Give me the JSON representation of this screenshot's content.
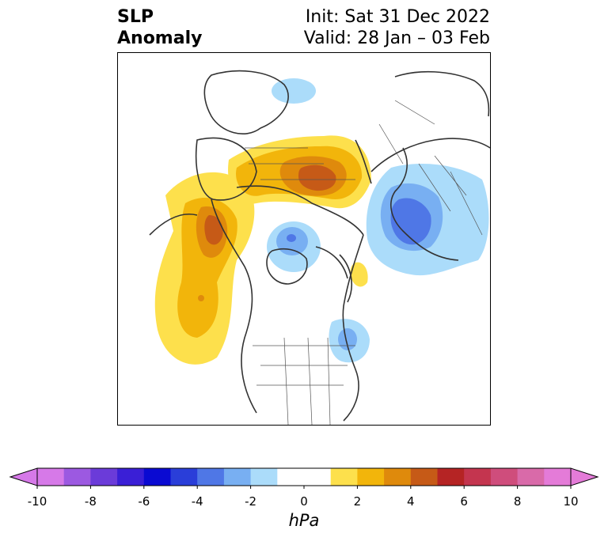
{
  "title": {
    "line1": "SLP",
    "line2": "Anomaly",
    "init": "Init: Sat 31 Dec 2022",
    "valid": "Valid: 28 Jan – 03 Feb"
  },
  "colorbar": {
    "unit": "hPa",
    "ticks": [
      "-10",
      "-8",
      "-6",
      "-4",
      "-2",
      "0",
      "2",
      "4",
      "6",
      "8",
      "10"
    ],
    "colors": [
      "#d679e8",
      "#9c59e1",
      "#6b3bd9",
      "#3a1fd6",
      "#0a0ad2",
      "#2a3ed9",
      "#4f77e6",
      "#78aff2",
      "#abdcfa",
      "#ffffff",
      "#ffffff",
      "#fde04c",
      "#f2b50b",
      "#df8a0c",
      "#c65a17",
      "#b52424",
      "#c4354f",
      "#cf4d7c",
      "#d96aa9",
      "#e47bd8"
    ],
    "min_color": "#d679e8",
    "max_color": "#e47bd8"
  },
  "map": {
    "anomalies": [
      {
        "name": "pacific-positive",
        "sign": "positive",
        "peak_hpa": 5
      },
      {
        "name": "siberia-arctic-positive",
        "sign": "positive",
        "peak_hpa": 5
      },
      {
        "name": "europe-negative",
        "sign": "negative",
        "peak_hpa": -5
      },
      {
        "name": "canada-negative",
        "sign": "negative",
        "peak_hpa": -4
      },
      {
        "name": "atlantic-negative",
        "sign": "negative",
        "peak_hpa": -3
      },
      {
        "name": "asia-negative",
        "sign": "negative",
        "peak_hpa": -2
      }
    ]
  }
}
